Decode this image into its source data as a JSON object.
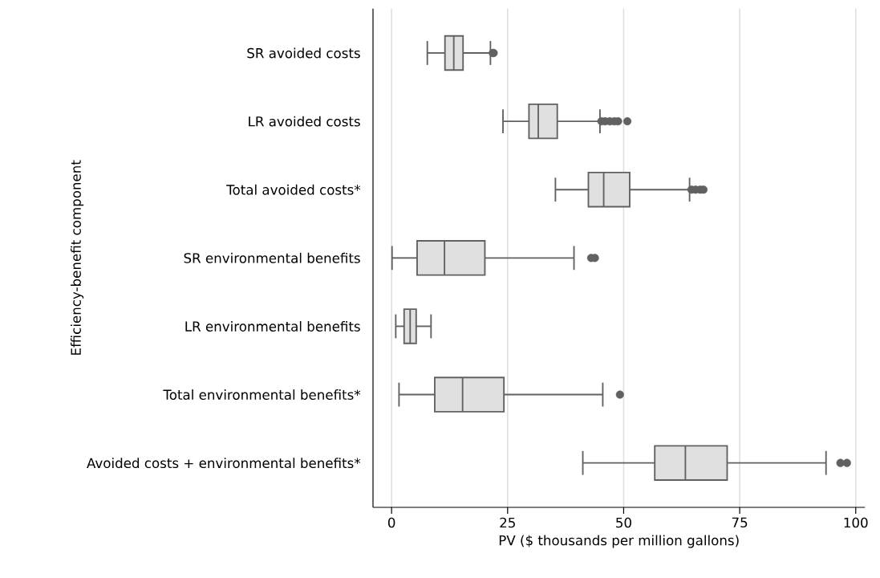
{
  "chart_data": {
    "type": "box",
    "xlabel": "PV ($ thousands per million gallons)",
    "ylabel": "Efficiency-benefit component",
    "orientation": "horizontal",
    "categories": [
      "SR avoided costs",
      "LR avoided costs",
      "Total avoided costs*",
      "SR environmental benefits",
      "LR environmental benefits",
      "Total environmental benefits*",
      "Avoided costs + environmental benefits*"
    ],
    "series": [
      {
        "color": "#e0e0e0",
        "boxes": [
          {
            "low": 7.7,
            "q1": 11.5,
            "median": 13.4,
            "q3": 15.4,
            "high": 21.3,
            "outliers": [
              21.8,
              22.0
            ]
          },
          {
            "low": 24.0,
            "q1": 29.6,
            "median": 31.6,
            "q3": 35.7,
            "high": 44.9,
            "outliers": [
              45.2,
              46.0,
              47.0,
              48.0,
              48.8,
              50.8
            ]
          },
          {
            "low": 35.3,
            "q1": 42.4,
            "median": 45.7,
            "q3": 51.3,
            "high": 64.2,
            "outliers": [
              64.6,
              65.5,
              66.5,
              67.2
            ]
          },
          {
            "low": 0.1,
            "q1": 5.5,
            "median": 11.4,
            "q3": 20.1,
            "high": 39.3,
            "outliers": [
              43.0,
              43.8
            ]
          },
          {
            "low": 0.9,
            "q1": 2.7,
            "median": 4.0,
            "q3": 5.3,
            "high": 8.5
          },
          {
            "low": 1.6,
            "q1": 9.3,
            "median": 15.3,
            "q3": 24.2,
            "high": 45.5,
            "outliers": [
              49.2
            ]
          },
          {
            "low": 41.2,
            "q1": 56.7,
            "median": 63.3,
            "q3": 72.3,
            "high": 93.6,
            "outliers": [
              96.7,
              98.1
            ]
          }
        ]
      }
    ],
    "xlim": [
      -4,
      102
    ],
    "xticks": [
      0,
      25,
      50,
      75,
      100
    ],
    "grid": "x"
  }
}
